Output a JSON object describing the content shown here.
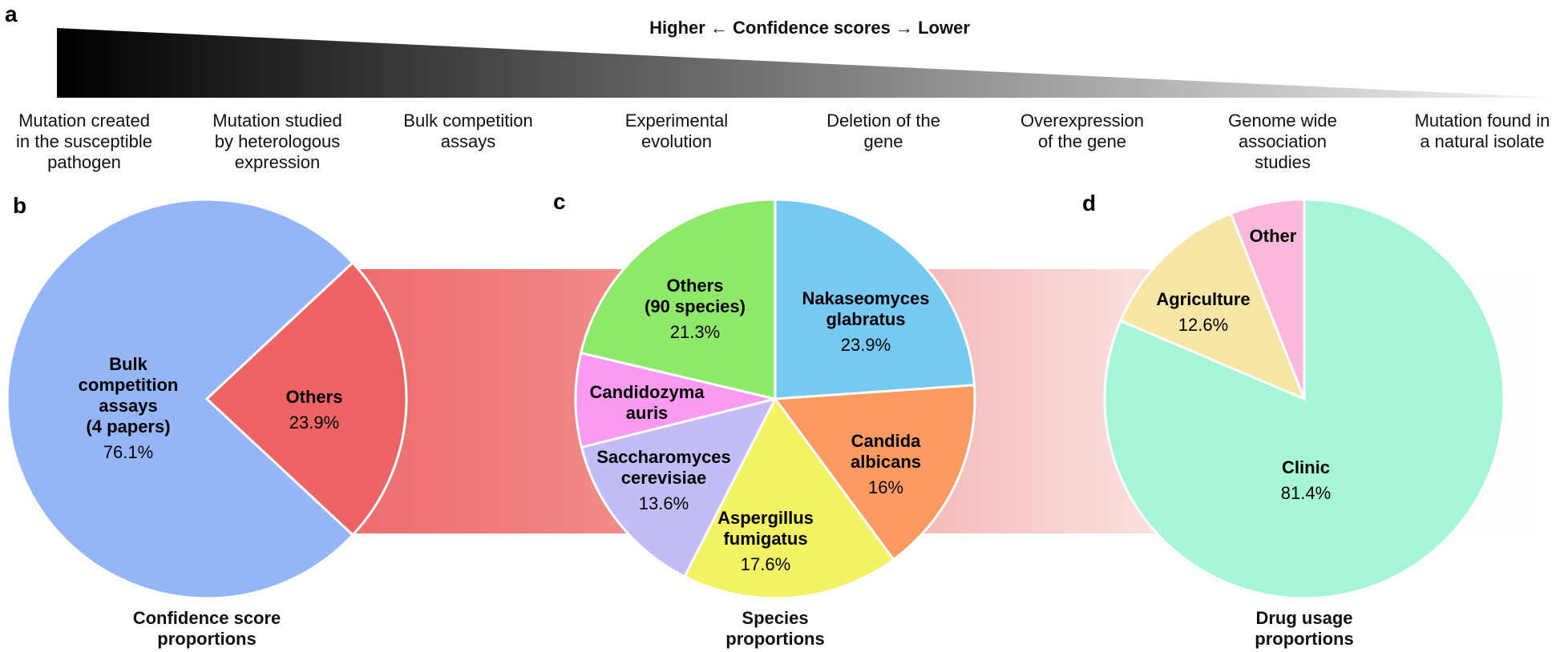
{
  "panel_a": {
    "label": "a",
    "title": "Higher ← Confidence scores → Lower",
    "levels": [
      "Mutation created\nin the susceptible\npathogen",
      "Mutation studied\nby heterologous\nexpression",
      "Bulk competition\nassays",
      "Experimental\nevolution",
      "Deletion of the\ngene",
      "Overexpression\nof the gene",
      "Genome wide\nassociation\nstudies",
      "Mutation found in\na natural isolate"
    ]
  },
  "chart_data": [
    {
      "type": "pie",
      "panel": "b",
      "title": "Confidence score\nproportions",
      "categories": [
        "Bulk\ncompetition\nassays\n(4 papers)",
        "Others"
      ],
      "values": [
        76.1,
        23.9
      ],
      "value_labels": [
        "76.1%",
        "23.9%"
      ],
      "colors": [
        "#94b6f7",
        "#ee6464"
      ]
    },
    {
      "type": "pie",
      "panel": "c",
      "title": "Species\nproportions",
      "categories": [
        "Nakaseomyces\nglabratus",
        "Candida\nalbicans",
        "Aspergillus\nfumigatus",
        "Saccharomyces\ncerevisiae",
        "Candidozyma\nauris",
        "Others\n(90 species)"
      ],
      "values": [
        23.9,
        16,
        17.6,
        13.6,
        7.6,
        21.3
      ],
      "value_labels": [
        "23.9%",
        "16%",
        "17.6%",
        "13.6%",
        null,
        "21.3%"
      ],
      "colors": [
        "#76caf2",
        "#fd9a62",
        "#f2f262",
        "#c3bcf7",
        "#fb9af0",
        "#8ee86a"
      ]
    },
    {
      "type": "pie",
      "panel": "d",
      "title": "Drug usage\nproportions",
      "categories": [
        "Clinic",
        "Agriculture",
        "Other"
      ],
      "values": [
        81.4,
        12.6,
        6.0
      ],
      "value_labels": [
        "81.4%",
        "12.6%",
        null
      ],
      "colors": [
        "#a6f5d8",
        "#f5e6a6",
        "#fbb8da"
      ]
    }
  ]
}
